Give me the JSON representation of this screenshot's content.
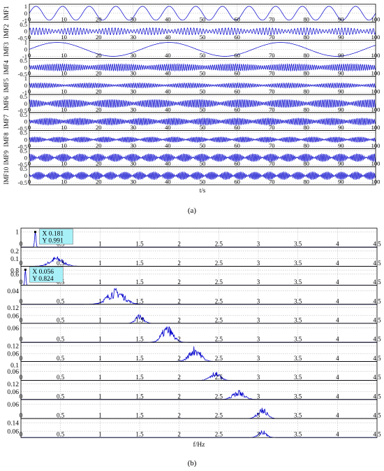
{
  "figure": {
    "panel_a_label": "(a)",
    "panel_b_label": "(b)"
  },
  "colors": {
    "signal": "#0000cc",
    "axis": "#000000",
    "grid": "#bbbbbb",
    "datatip_bg": "#a8f0f8"
  },
  "chart_data": [
    {
      "type": "line",
      "panel": "a",
      "xlabel": "t/s",
      "xlim": [
        0,
        100
      ],
      "xticks": [
        0,
        10,
        20,
        30,
        40,
        50,
        60,
        70,
        80,
        90,
        100
      ],
      "grid": true,
      "series": [
        {
          "name": "IMF1",
          "yticks": [
            "1",
            "0",
            "-1"
          ],
          "ylim": [
            -1,
            1
          ],
          "amplitude": 1,
          "periods": 13,
          "mod_periods": 0,
          "mod_depth": 0,
          "pattern": "clean sine"
        },
        {
          "name": "IMF2",
          "yticks": [
            "0.5",
            "0",
            "-0.5"
          ],
          "ylim": [
            -0.5,
            0.5
          ],
          "amplitude": 0.25,
          "periods": 110,
          "mod_periods": 9,
          "mod_depth": 0.6,
          "pattern": "modulated oscillation"
        },
        {
          "name": "IMF3",
          "yticks": [
            "1",
            "0",
            "-1"
          ],
          "ylim": [
            -1,
            1
          ],
          "amplitude": 1,
          "periods": 3.1,
          "mod_periods": 0,
          "mod_depth": 0,
          "pattern": "clean sine"
        },
        {
          "name": "IMF4",
          "yticks": [
            "0.5",
            "0",
            "-0.5"
          ],
          "ylim": [
            -0.5,
            0.5
          ],
          "amplitude": 0.25,
          "periods": 180,
          "mod_periods": 6,
          "mod_depth": 0.5,
          "pattern": "dense oscillation"
        },
        {
          "name": "IMF5",
          "yticks": [
            "1",
            "0",
            "-1"
          ],
          "ylim": [
            -1,
            1
          ],
          "amplitude": 0.35,
          "periods": 190,
          "mod_periods": 7,
          "mod_depth": 0.7,
          "pattern": "dense oscillation"
        },
        {
          "name": "IMF6",
          "yticks": [
            "0.5",
            "0",
            "-0.5"
          ],
          "ylim": [
            -0.5,
            0.5
          ],
          "amplitude": 0.3,
          "periods": 200,
          "mod_periods": 8,
          "mod_depth": 0.7,
          "pattern": "dense oscillation"
        },
        {
          "name": "IMF7",
          "yticks": [
            "0.5",
            "0",
            "-0.5"
          ],
          "ylim": [
            -0.5,
            0.5
          ],
          "amplitude": 0.25,
          "periods": 210,
          "mod_periods": 11,
          "mod_depth": 0.65,
          "pattern": "dense oscillation"
        },
        {
          "name": "IMF8",
          "yticks": [
            "0.5",
            "0",
            "-0.5"
          ],
          "ylim": [
            -0.5,
            0.5
          ],
          "amplitude": 0.2,
          "periods": 220,
          "mod_periods": 15,
          "mod_depth": 0.85,
          "pattern": "beaded oscillation"
        },
        {
          "name": "IMF9",
          "yticks": [
            "0.5",
            "0",
            "-0.5"
          ],
          "ylim": [
            -0.5,
            0.5
          ],
          "amplitude": 0.3,
          "periods": 230,
          "mod_periods": 20,
          "mod_depth": 0.95,
          "pattern": "beaded oscillation"
        },
        {
          "name": "IMF10",
          "yticks": [
            "0.5",
            "0",
            "-0.5"
          ],
          "ylim": [
            -0.5,
            0.5
          ],
          "amplitude": 0.3,
          "periods": 240,
          "mod_periods": 24,
          "mod_depth": 0.95,
          "pattern": "beaded oscillation"
        }
      ]
    },
    {
      "type": "line",
      "panel": "b",
      "xlabel": "f/Hz",
      "xlim": [
        0,
        4.5
      ],
      "xticks": [
        0,
        0.5,
        1,
        1.5,
        2,
        2.5,
        3,
        3.5,
        4,
        4.5
      ],
      "grid": true,
      "series": [
        {
          "yticks": [
            "1"
          ],
          "ylim": [
            0,
            1.1
          ],
          "peak_freq": 0.181,
          "peak_value": 0.991,
          "width": 0.012,
          "shape": "spike",
          "datatip": {
            "x_label": "X 0.181",
            "y_label": "Y 0.991"
          }
        },
        {
          "yticks": [
            "0.2",
            "0.1"
          ],
          "ylim": [
            0,
            0.22
          ],
          "peak_freq": 0.45,
          "peak_value": 0.11,
          "width": 0.12,
          "shape": "noisy"
        },
        {
          "yticks": [
            "0.8",
            "0.6"
          ],
          "ylim": [
            0,
            0.9
          ],
          "peak_freq": 0.056,
          "peak_value": 0.824,
          "width": 0.01,
          "shape": "spike",
          "datatip": {
            "x_label": "X 0.056",
            "y_label": "Y 0.824"
          }
        },
        {
          "yticks": [
            "0.04"
          ],
          "ylim": [
            0,
            0.05
          ],
          "peak_freq": 1.2,
          "peak_value": 0.04,
          "width": 0.15,
          "shape": "noisy"
        },
        {
          "yticks": [
            "0.12",
            "0.06"
          ],
          "ylim": [
            0,
            0.13
          ],
          "peak_freq": 1.5,
          "peak_value": 0.06,
          "width": 0.07,
          "shape": "noisy"
        },
        {
          "yticks": [
            "0.06"
          ],
          "ylim": [
            0,
            0.07
          ],
          "peak_freq": 1.85,
          "peak_value": 0.06,
          "width": 0.1,
          "shape": "noisy"
        },
        {
          "yticks": [
            "0.12",
            "0.06"
          ],
          "ylim": [
            0,
            0.13
          ],
          "peak_freq": 2.2,
          "peak_value": 0.1,
          "width": 0.1,
          "shape": "noisy"
        },
        {
          "yticks": [
            "0.1",
            "0.06"
          ],
          "ylim": [
            0,
            0.11
          ],
          "peak_freq": 2.45,
          "peak_value": 0.05,
          "width": 0.09,
          "shape": "noisy"
        },
        {
          "yticks": [
            "0.12",
            "0.06"
          ],
          "ylim": [
            0,
            0.13
          ],
          "peak_freq": 2.75,
          "peak_value": 0.06,
          "width": 0.1,
          "shape": "noisy"
        },
        {
          "yticks": [
            "0.06"
          ],
          "ylim": [
            0,
            0.07
          ],
          "peak_freq": 3.05,
          "peak_value": 0.04,
          "width": 0.08,
          "shape": "noisy"
        },
        {
          "yticks": [
            "0.14",
            "0.06"
          ],
          "ylim": [
            0,
            0.16
          ],
          "peak_freq": 3.05,
          "peak_value": 0.06,
          "width": 0.07,
          "shape": "noisy"
        }
      ]
    }
  ]
}
